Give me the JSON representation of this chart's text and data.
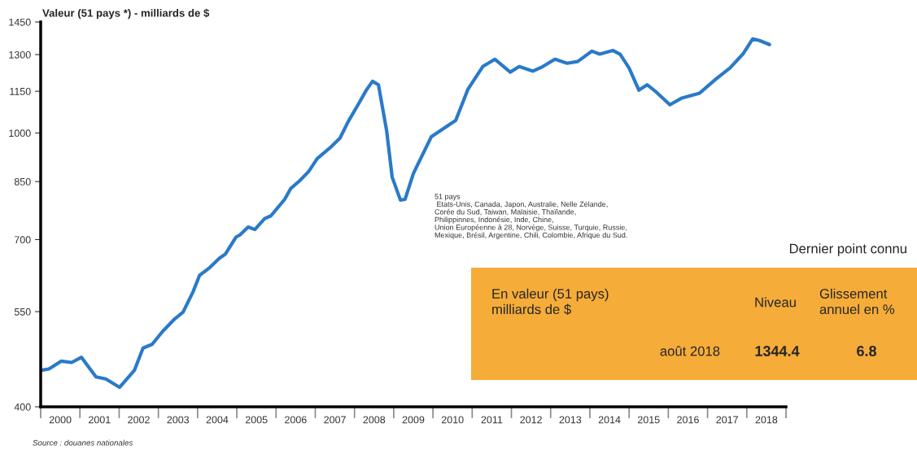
{
  "chart_data": {
    "type": "line",
    "title": "Valeur (51 pays *) - milliards de $",
    "x": [
      2000.0,
      2000.21,
      2000.52,
      2000.79,
      2001.04,
      2001.41,
      2001.66,
      2002.01,
      2002.39,
      2002.61,
      2002.84,
      2003.11,
      2003.42,
      2003.63,
      2003.88,
      2004.05,
      2004.29,
      2004.56,
      2004.71,
      2004.98,
      2005.08,
      2005.29,
      2005.46,
      2005.71,
      2005.87,
      2006.22,
      2006.37,
      2006.6,
      2006.83,
      2007.05,
      2007.37,
      2007.63,
      2007.84,
      2008.09,
      2008.3,
      2008.46,
      2008.61,
      2008.82,
      2008.96,
      2009.17,
      2009.29,
      2009.5,
      2009.96,
      2010.37,
      2010.58,
      2010.89,
      2011.27,
      2011.58,
      2011.97,
      2012.2,
      2012.55,
      2012.8,
      2013.11,
      2013.42,
      2013.69,
      2014.05,
      2014.25,
      2014.59,
      2014.77,
      2015.0,
      2015.25,
      2015.46,
      2015.66,
      2016.04,
      2016.33,
      2016.8,
      2017.22,
      2017.57,
      2017.9,
      2018.15,
      2018.32,
      2018.58
    ],
    "series": [
      {
        "color": "#2a7ac8",
        "values": [
          452,
          454,
          466,
          464,
          472,
          442,
          439,
          427,
          452,
          487,
          493,
          515,
          537,
          549,
          587,
          621,
          636,
          658,
          667,
          706,
          711,
          730,
          724,
          751,
          758,
          801,
          830,
          852,
          879,
          918,
          951,
          983,
          1039,
          1099,
          1154,
          1189,
          1175,
          1007,
          863,
          799,
          801,
          873,
          988,
          1024,
          1043,
          1157,
          1249,
          1280,
          1226,
          1249,
          1230,
          1249,
          1280,
          1263,
          1270,
          1315,
          1302,
          1318,
          1302,
          1243,
          1154,
          1175,
          1151,
          1099,
          1123,
          1143,
          1199,
          1243,
          1302,
          1370,
          1363,
          1344.4
        ]
      }
    ],
    "log": true,
    "ylim": [
      400,
      1450
    ],
    "yticks": [
      400,
      550,
      700,
      850,
      1000,
      1150,
      1300,
      1450
    ],
    "xlim": [
      2000,
      2019
    ],
    "xticks": [
      {
        "value": 2000,
        "label": null
      },
      {
        "value": 2000.5,
        "label": "2000"
      },
      {
        "value": 2001,
        "label": null
      },
      {
        "value": 2001.5,
        "label": "2001"
      },
      {
        "value": 2002,
        "label": null
      },
      {
        "value": 2002.5,
        "label": "2002"
      },
      {
        "value": 2003,
        "label": null
      },
      {
        "value": 2003.5,
        "label": "2003"
      },
      {
        "value": 2004,
        "label": null
      },
      {
        "value": 2004.5,
        "label": "2004"
      },
      {
        "value": 2005,
        "label": null
      },
      {
        "value": 2005.5,
        "label": "2005"
      },
      {
        "value": 2006,
        "label": null
      },
      {
        "value": 2006.5,
        "label": "2006"
      },
      {
        "value": 2007,
        "label": null
      },
      {
        "value": 2007.5,
        "label": "2007"
      },
      {
        "value": 2008,
        "label": null
      },
      {
        "value": 2008.5,
        "label": "2008"
      },
      {
        "value": 2009,
        "label": null
      },
      {
        "value": 2009.5,
        "label": "2009"
      },
      {
        "value": 2010,
        "label": null
      },
      {
        "value": 2010.5,
        "label": "2010"
      },
      {
        "value": 2011,
        "label": null
      },
      {
        "value": 2011.5,
        "label": "2011"
      },
      {
        "value": 2012,
        "label": null
      },
      {
        "value": 2012.5,
        "label": "2012"
      },
      {
        "value": 2013,
        "label": null
      },
      {
        "value": 2013.5,
        "label": "2013"
      },
      {
        "value": 2014,
        "label": null
      },
      {
        "value": 2014.5,
        "label": "2014"
      },
      {
        "value": 2015,
        "label": null
      },
      {
        "value": 2015.5,
        "label": "2015"
      },
      {
        "value": 2016,
        "label": null
      },
      {
        "value": 2016.5,
        "label": "2016"
      },
      {
        "value": 2017,
        "label": null
      },
      {
        "value": 2017.5,
        "label": "2017"
      },
      {
        "value": 2018,
        "label": null
      },
      {
        "value": 2018.5,
        "label": "2018"
      },
      {
        "value": 2019,
        "label": null
      }
    ],
    "grid": false,
    "line_style": "solid",
    "marker": "none",
    "annotations": [
      "51 pays\n Etats-Unis, Canada, Japon, Australie, Nelle Zélande,\nCorée du Sud, Taiwan, Malaisie, Thaïlande,\nPhilippinnes, Indonésie, Inde, Chine,\nUnion Européenne à 28, Norvège, Suisse, Turquie, Russie,\nMexique, Brésil, Argentine, Chili, Colombie, Afrique du Sud.",
      "Dernier point connu",
      "En valeur (51 pays)\nmilliards de $",
      "Niveau",
      "Glissement\nannuel en %",
      "août 2018",
      "1344.4",
      "6.8",
      "Source : douanes nationales"
    ]
  }
}
